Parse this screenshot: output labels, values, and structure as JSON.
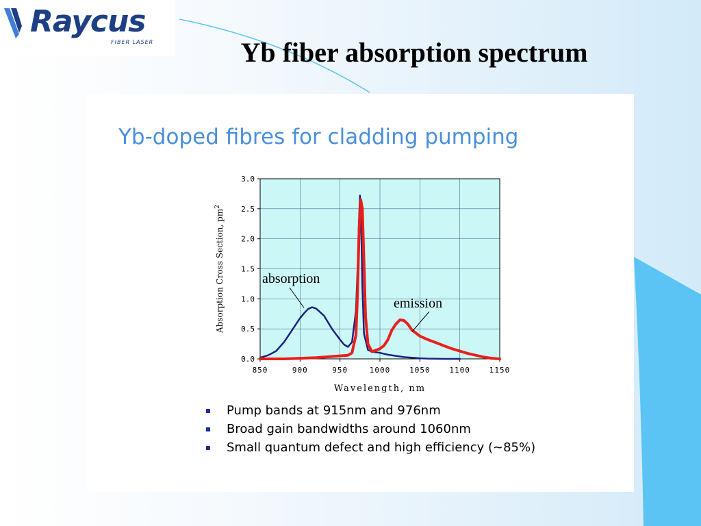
{
  "logo": {
    "brand": "Raycus",
    "tagline": "FIBER LASER"
  },
  "slide_title": "Yb fiber absorption spectrum",
  "panel_heading": "Yb-doped fibres for cladding pumping",
  "bullets": [
    "Pump bands at 915nm and 976nm",
    "Broad gain bandwidths around 1060nm",
    "Small quantum defect and high efficiency (~85%)"
  ],
  "colors": {
    "absorption": "#1a237e",
    "emission": "#e8201a",
    "plot_bg": "#ccf7f7",
    "heading": "#4a8fdc",
    "logo": "#1d3f83",
    "accent": "#5bc4f5"
  },
  "chart_data": {
    "type": "line",
    "xlabel": "Wavelength, nm",
    "ylabel": "Absorption Cross Section, pm",
    "ylabel_superscript": "2",
    "xlim": [
      850,
      1150
    ],
    "ylim": [
      0,
      3.0
    ],
    "xticks": [
      "850",
      "900",
      "950",
      "1000",
      "1050",
      "1100",
      "1150"
    ],
    "yticks": [
      "0.0",
      "0.5",
      "1.0",
      "1.5",
      "2.0",
      "2.5",
      "3.0"
    ],
    "grid": true,
    "annotations": [
      {
        "text": "absorption",
        "series": "absorption",
        "x": 905,
        "y": 0.85
      },
      {
        "text": "emission",
        "series": "emission",
        "x": 1040,
        "y": 0.45
      }
    ],
    "series": [
      {
        "name": "absorption",
        "x": [
          850,
          860,
          870,
          880,
          890,
          900,
          905,
          910,
          915,
          920,
          930,
          940,
          950,
          955,
          960,
          965,
          970,
          972,
          974,
          975,
          976,
          977,
          978,
          980,
          985,
          990,
          1000,
          1010,
          1020,
          1030,
          1040,
          1050,
          1060,
          1080,
          1100
        ],
        "y": [
          0.02,
          0.06,
          0.13,
          0.28,
          0.48,
          0.68,
          0.76,
          0.83,
          0.86,
          0.84,
          0.72,
          0.5,
          0.32,
          0.24,
          0.2,
          0.28,
          0.8,
          1.5,
          2.4,
          2.72,
          2.55,
          1.9,
          1.2,
          0.42,
          0.15,
          0.12,
          0.1,
          0.07,
          0.05,
          0.03,
          0.02,
          0.01,
          0.005,
          0.0,
          0.0
        ]
      },
      {
        "name": "emission",
        "x": [
          850,
          880,
          900,
          920,
          940,
          950,
          960,
          965,
          970,
          972,
          974,
          976,
          978,
          980,
          982,
          985,
          990,
          1000,
          1005,
          1010,
          1015,
          1020,
          1025,
          1030,
          1035,
          1040,
          1050,
          1060,
          1070,
          1080,
          1090,
          1100,
          1110,
          1120,
          1130,
          1140,
          1150
        ],
        "y": [
          0.0,
          0.0,
          0.01,
          0.02,
          0.04,
          0.05,
          0.06,
          0.1,
          0.4,
          1.1,
          2.2,
          2.65,
          2.5,
          1.6,
          0.7,
          0.25,
          0.12,
          0.17,
          0.22,
          0.32,
          0.48,
          0.58,
          0.65,
          0.64,
          0.58,
          0.48,
          0.38,
          0.32,
          0.27,
          0.22,
          0.17,
          0.13,
          0.09,
          0.06,
          0.03,
          0.01,
          0.0
        ]
      }
    ]
  }
}
